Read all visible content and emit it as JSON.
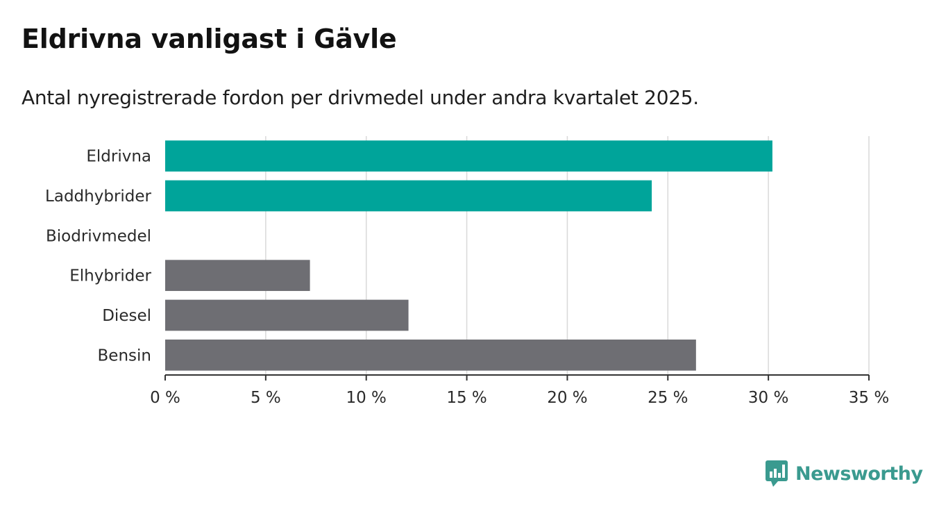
{
  "chart_data": {
    "type": "bar",
    "orientation": "horizontal",
    "title": "Eldrivna vanligast i Gävle",
    "subtitle": "Antal nyregistrerade fordon per drivmedel under andra kvartalet 2025.",
    "categories": [
      "Eldrivna",
      "Laddhybrider",
      "Biodrivmedel",
      "Elhybrider",
      "Diesel",
      "Bensin"
    ],
    "values": [
      30.2,
      24.2,
      0,
      7.2,
      12.1,
      26.4
    ],
    "highlight": [
      true,
      true,
      false,
      false,
      false,
      false
    ],
    "xlim": [
      0,
      35
    ],
    "xticks": [
      0,
      5,
      10,
      15,
      20,
      25,
      30,
      35
    ],
    "xtick_labels": [
      "0 %",
      "5 %",
      "10 %",
      "15 %",
      "20 %",
      "25 %",
      "30 %",
      "35 %"
    ],
    "grid": true,
    "colors": {
      "highlight": "#00a49a",
      "default": "#6e6e73",
      "grid": "#d9d9d9",
      "axis": "#333333"
    }
  },
  "brand": {
    "name": "Newsworthy",
    "color": "#3a9a8f",
    "icon": "bar-chart-speech-bubble-icon"
  }
}
